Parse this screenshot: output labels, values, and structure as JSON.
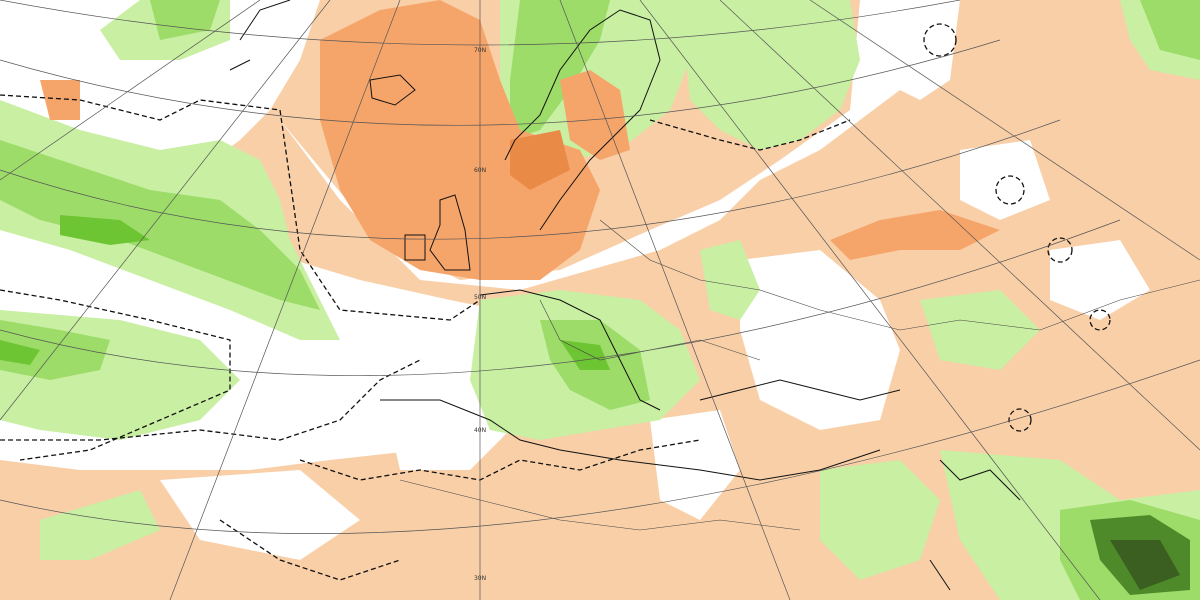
{
  "graticule_labels": [
    "70N",
    "60N",
    "50N",
    "40N",
    "30N"
  ]
}
